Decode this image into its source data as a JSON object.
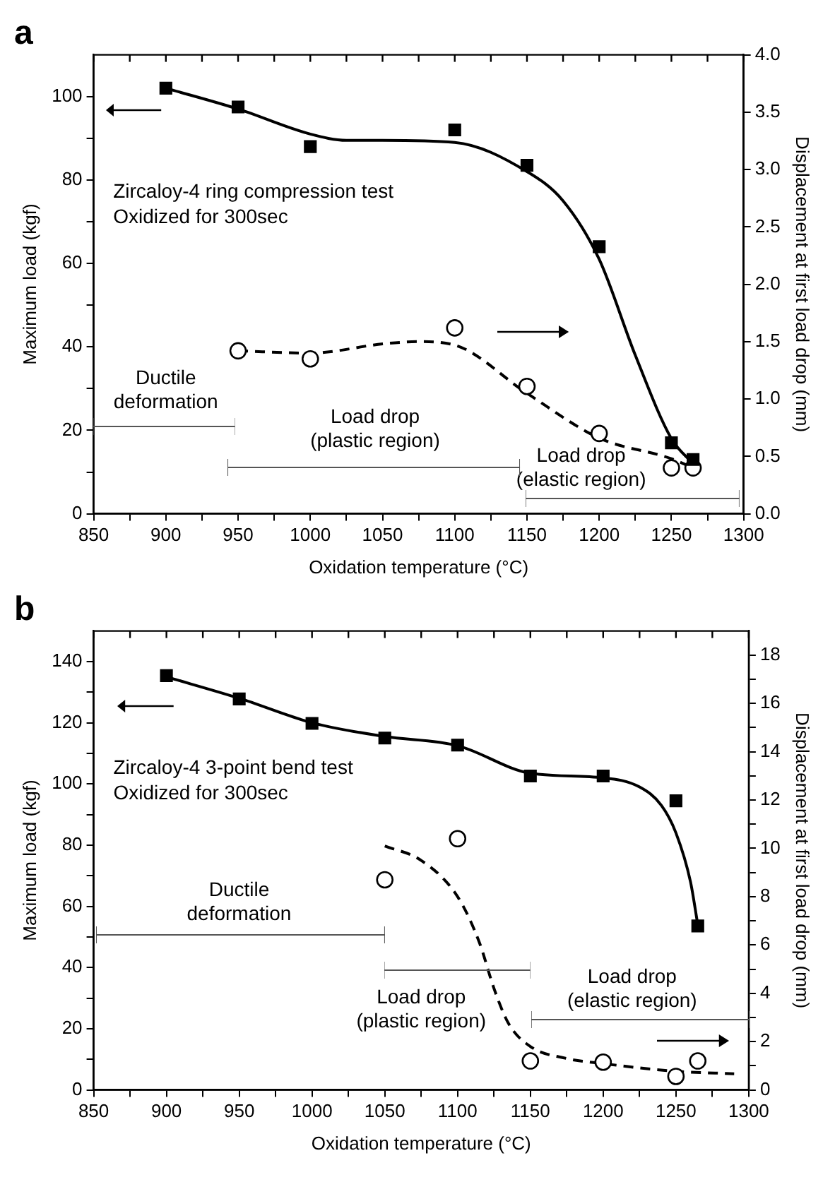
{
  "chart_data": [
    {
      "type": "scatter",
      "title": "a",
      "xlabel": "Oxidation temperature (°C)",
      "ylabel": "Maximum load (kgf)",
      "y2label": "Displacement at first load drop (mm)",
      "annotations": [
        "Zircaloy-4 ring compression test",
        "Oxidized for 300sec",
        "Ductile deformation",
        "Load drop (plastic region)",
        "Load drop (elastic region)"
      ],
      "xlim": [
        850,
        1300
      ],
      "xticks": [
        850,
        {
          "value": 875,
          "label": null
        },
        900,
        {
          "value": 925,
          "label": null
        },
        950,
        {
          "value": 975,
          "label": null
        },
        1000,
        {
          "value": 1025,
          "label": null
        },
        1050,
        {
          "value": 1075,
          "label": null
        },
        1100,
        {
          "value": 1125,
          "label": null
        },
        1150,
        {
          "value": 1175,
          "label": null
        },
        1200,
        {
          "value": 1225,
          "label": null
        },
        1250,
        {
          "value": 1275,
          "label": null
        },
        1300
      ],
      "ylim": [
        0,
        110
      ],
      "yticks": [
        0,
        {
          "value": 10,
          "label": null
        },
        20,
        {
          "value": 30,
          "label": null
        },
        40,
        {
          "value": 50,
          "label": null
        },
        60,
        {
          "value": 70,
          "label": null
        },
        80,
        {
          "value": 90,
          "label": null
        },
        100
      ],
      "y2lim": [
        0,
        4
      ],
      "y2ticks": [
        {
          "value": 0,
          "label": "0.0"
        },
        {
          "value": 0.5,
          "label": "0.5"
        },
        {
          "value": 1,
          "label": "1.0"
        },
        {
          "value": 1.5,
          "label": "1.5"
        },
        {
          "value": 2,
          "label": "2.0"
        },
        {
          "value": 2.5,
          "label": "2.5"
        },
        {
          "value": 3,
          "label": "3.0"
        },
        {
          "value": 3.5,
          "label": "3.5"
        },
        {
          "value": 4,
          "label": "4.0"
        }
      ],
      "grid": false,
      "legend": false,
      "series": [
        {
          "type": "scatter",
          "marker": "square",
          "color": "#000000",
          "x": [
            900,
            950,
            1000,
            1100,
            1150,
            1200,
            1250,
            1265
          ],
          "values": [
            102,
            97.5,
            88,
            92,
            83.5,
            64,
            17,
            13
          ]
        },
        {
          "type": "line",
          "marker": "none",
          "line_style": "solid",
          "color": "#000000",
          "x": [
            900,
            950,
            1000,
            1025,
            1050,
            1100,
            1150,
            1175,
            1200,
            1225,
            1250,
            1265
          ],
          "values": [
            102,
            97,
            91,
            89.5,
            89.5,
            89,
            82,
            75,
            61,
            38,
            18,
            12
          ]
        },
        {
          "type": "scatter",
          "marker": "circle",
          "axis": "y2",
          "color": "#000000",
          "x": [
            950,
            1000,
            1100,
            1150,
            1200,
            1250,
            1265
          ],
          "values": [
            1.42,
            1.35,
            1.62,
            1.11,
            0.7,
            0.4,
            0.4
          ]
        },
        {
          "type": "line",
          "marker": "none",
          "line_style": "dashed",
          "axis": "y2",
          "color": "#000000",
          "x": [
            950,
            1000,
            1050,
            1075,
            1100,
            1150,
            1200,
            1250,
            1265
          ],
          "values": [
            1.42,
            1.4,
            1.48,
            1.5,
            1.47,
            1.05,
            0.66,
            0.48,
            0.4
          ]
        }
      ]
    },
    {
      "type": "scatter",
      "title": "b",
      "xlabel": "Oxidation temperature (°C)",
      "ylabel": "Maximum load (kgf)",
      "y2label": "Displacement at first load drop (mm)",
      "annotations": [
        "Zircaloy-4 3-point bend test",
        "Oxidized for 300sec",
        "Ductile deformation",
        "Load drop (plastic region)",
        "Load drop (elastic region)"
      ],
      "xlim": [
        850,
        1300
      ],
      "xticks": [
        850,
        {
          "value": 875,
          "label": null
        },
        900,
        {
          "value": 925,
          "label": null
        },
        950,
        {
          "value": 975,
          "label": null
        },
        1000,
        {
          "value": 1025,
          "label": null
        },
        1050,
        {
          "value": 1075,
          "label": null
        },
        1100,
        {
          "value": 1125,
          "label": null
        },
        1150,
        {
          "value": 1175,
          "label": null
        },
        1200,
        {
          "value": 1225,
          "label": null
        },
        1250,
        {
          "value": 1275,
          "label": null
        },
        1300
      ],
      "ylim": [
        0,
        150
      ],
      "yticks": [
        0,
        {
          "value": 10,
          "label": null
        },
        20,
        {
          "value": 30,
          "label": null
        },
        40,
        {
          "value": 50,
          "label": null
        },
        60,
        {
          "value": 70,
          "label": null
        },
        80,
        {
          "value": 90,
          "label": null
        },
        100,
        {
          "value": 110,
          "label": null
        },
        120,
        {
          "value": 130,
          "label": null
        },
        140
      ],
      "y2lim": [
        0,
        19
      ],
      "y2ticks": [
        0,
        {
          "value": 1,
          "label": null
        },
        2,
        {
          "value": 3,
          "label": null
        },
        4,
        {
          "value": 5,
          "label": null
        },
        6,
        {
          "value": 7,
          "label": null
        },
        8,
        {
          "value": 9,
          "label": null
        },
        10,
        {
          "value": 11,
          "label": null
        },
        12,
        {
          "value": 13,
          "label": null
        },
        14,
        {
          "value": 15,
          "label": null
        },
        16,
        {
          "value": 17,
          "label": null
        },
        18
      ],
      "grid": false,
      "legend": false,
      "series": [
        {
          "type": "scatter",
          "marker": "square",
          "color": "#000000",
          "x": [
            900,
            950,
            1000,
            1050,
            1100,
            1150,
            1200,
            1250,
            1265
          ],
          "values": [
            135.4,
            127.8,
            119.8,
            115,
            112.7,
            102.6,
            102.6,
            94.5,
            53.6
          ]
        },
        {
          "type": "line",
          "marker": "none",
          "line_style": "solid",
          "color": "#000000",
          "x": [
            900,
            950,
            1000,
            1050,
            1100,
            1150,
            1200,
            1225,
            1240,
            1250,
            1260,
            1265
          ],
          "values": [
            135,
            128,
            120,
            115.5,
            112.5,
            103.5,
            102,
            99,
            93,
            84,
            68,
            54
          ]
        },
        {
          "type": "scatter",
          "marker": "circle",
          "axis": "y2",
          "color": "#000000",
          "x": [
            1050,
            1100,
            1150,
            1200,
            1250,
            1265
          ],
          "values": [
            8.7,
            10.4,
            1.2,
            1.15,
            0.56,
            1.2
          ]
        },
        {
          "type": "line",
          "marker": "none",
          "line_style": "dashed",
          "axis": "y2",
          "color": "#000000",
          "x": [
            1050,
            1075,
            1100,
            1115,
            1125,
            1135,
            1150,
            1175,
            1200,
            1250,
            1290
          ],
          "values": [
            10.1,
            9.5,
            8,
            6.1,
            4.2,
            2.75,
            1.8,
            1.3,
            1.09,
            0.77,
            0.67
          ]
        }
      ]
    }
  ]
}
